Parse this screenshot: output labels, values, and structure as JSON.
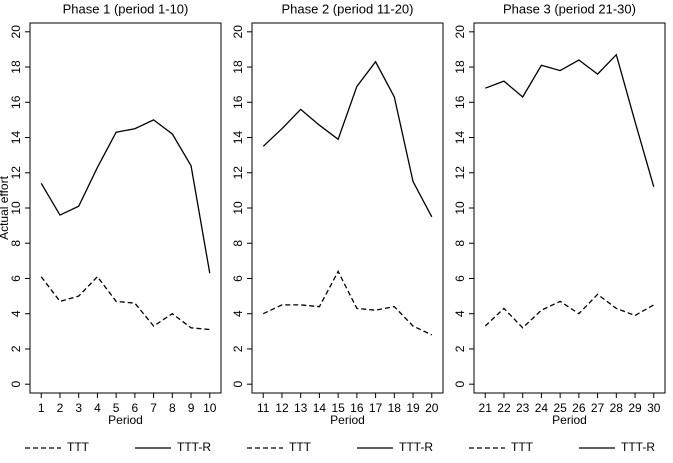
{
  "chart_data": [
    {
      "type": "line",
      "title": "Phase 1 (period 1-10)",
      "ylabel": "Actual effort",
      "xlabel": "Period",
      "x": [
        1,
        2,
        3,
        4,
        5,
        6,
        7,
        8,
        9,
        10
      ],
      "xlim": [
        0.4,
        10.6
      ],
      "xticks": [
        1,
        2,
        3,
        4,
        5,
        6,
        7,
        8,
        9,
        10
      ],
      "ylim": [
        -0.5,
        20.5
      ],
      "yticks": [
        0,
        2,
        4,
        6,
        8,
        10,
        12,
        14,
        16,
        18,
        20
      ],
      "series": [
        {
          "name": "TTT",
          "color": "#000000",
          "linestyle": "dashed",
          "values": [
            6.1,
            4.7,
            5.0,
            6.1,
            4.7,
            4.6,
            3.3,
            4.0,
            3.2,
            3.1
          ]
        },
        {
          "name": "TTT-R",
          "color": "#000000",
          "linestyle": "solid",
          "values": [
            11.4,
            9.6,
            10.1,
            12.3,
            14.3,
            14.5,
            15.0,
            14.2,
            12.4,
            6.3
          ]
        }
      ]
    },
    {
      "type": "line",
      "title": "Phase 2 (period 11-20)",
      "xlabel": "Period",
      "x": [
        11,
        12,
        13,
        14,
        15,
        16,
        17,
        18,
        19,
        20
      ],
      "xlim": [
        10.4,
        20.6
      ],
      "xticks": [
        11,
        12,
        13,
        14,
        15,
        16,
        17,
        18,
        19,
        20
      ],
      "ylim": [
        -0.5,
        20.5
      ],
      "yticks": [
        0,
        2,
        4,
        6,
        8,
        10,
        12,
        14,
        16,
        18,
        20
      ],
      "series": [
        {
          "name": "TTT",
          "color": "#000000",
          "linestyle": "dashed",
          "values": [
            4.0,
            4.5,
            4.5,
            4.4,
            6.4,
            4.3,
            4.2,
            4.4,
            3.3,
            2.8
          ]
        },
        {
          "name": "TTT-R",
          "color": "#000000",
          "linestyle": "solid",
          "values": [
            13.5,
            14.5,
            15.6,
            14.7,
            13.9,
            16.9,
            18.3,
            16.3,
            11.5,
            9.5
          ]
        }
      ]
    },
    {
      "type": "line",
      "title": "Phase 3 (period 21-30)",
      "xlabel": "Period",
      "x": [
        21,
        22,
        23,
        24,
        25,
        26,
        27,
        28,
        29,
        30
      ],
      "xlim": [
        20.4,
        30.6
      ],
      "xticks": [
        21,
        22,
        23,
        24,
        25,
        26,
        27,
        28,
        29,
        30
      ],
      "ylim": [
        -0.5,
        20.5
      ],
      "yticks": [
        0,
        2,
        4,
        6,
        8,
        10,
        12,
        14,
        16,
        18,
        20
      ],
      "series": [
        {
          "name": "TTT",
          "color": "#000000",
          "linestyle": "dashed",
          "values": [
            3.3,
            4.3,
            3.2,
            4.2,
            4.7,
            4.0,
            5.1,
            4.3,
            3.9,
            4.5
          ]
        },
        {
          "name": "TTT-R",
          "color": "#000000",
          "linestyle": "solid",
          "values": [
            16.8,
            17.2,
            16.3,
            18.1,
            17.8,
            18.4,
            17.6,
            18.7,
            14.9,
            11.2
          ]
        }
      ]
    }
  ]
}
